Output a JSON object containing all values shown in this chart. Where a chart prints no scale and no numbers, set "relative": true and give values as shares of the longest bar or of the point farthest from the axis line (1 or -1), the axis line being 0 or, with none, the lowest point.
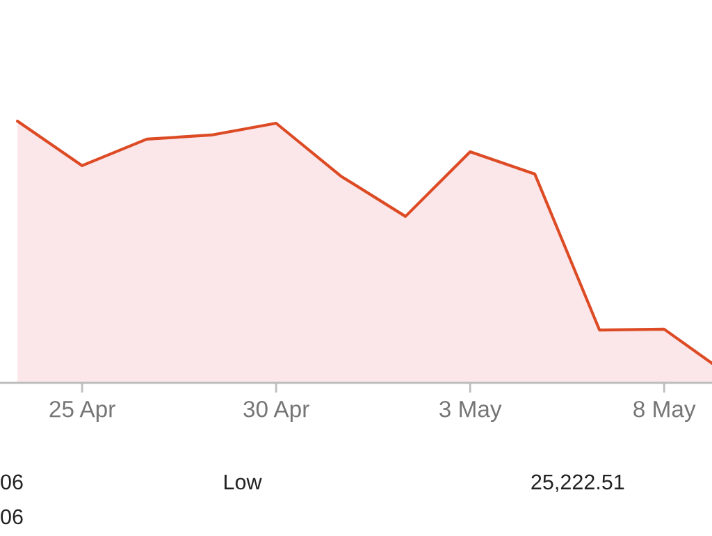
{
  "chart_data": {
    "type": "area",
    "relative": true,
    "categories": [
      null,
      "25 Apr",
      null,
      null,
      "30 Apr",
      null,
      null,
      "3 May",
      null,
      null,
      "8 May",
      null
    ],
    "series": [
      {
        "color": "#dd4b25",
        "values": [
          1.0,
          0.83,
          0.931,
          0.947,
          0.992,
          0.79,
          0.636,
          0.883,
          0.798,
          0.202,
          0.205,
          0.029
        ]
      }
    ],
    "annotations": [
      "06",
      "06",
      "Low",
      "25,222.51"
    ]
  }
}
